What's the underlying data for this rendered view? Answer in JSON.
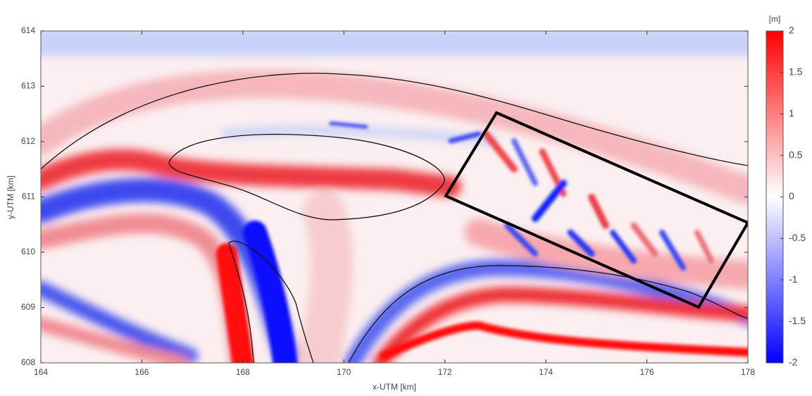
{
  "chart_data": {
    "type": "heatmap",
    "xlabel": "x-UTM [km]",
    "ylabel": "y-UTM [km]",
    "xlim": [
      164,
      178
    ],
    "ylim": [
      608,
      614
    ],
    "xticks": [
      164,
      166,
      168,
      170,
      172,
      174,
      176,
      178
    ],
    "yticks": [
      608,
      609,
      610,
      611,
      612,
      613,
      614
    ],
    "colorbar": {
      "label": "[m]",
      "clim": [
        -2,
        2
      ],
      "ticks": [
        -2,
        -1.5,
        -1,
        -0.5,
        0,
        0.5,
        1,
        1.5,
        2
      ],
      "colors": [
        "#0000ff",
        "#ffffff",
        "#ff0000"
      ]
    }
  }
}
